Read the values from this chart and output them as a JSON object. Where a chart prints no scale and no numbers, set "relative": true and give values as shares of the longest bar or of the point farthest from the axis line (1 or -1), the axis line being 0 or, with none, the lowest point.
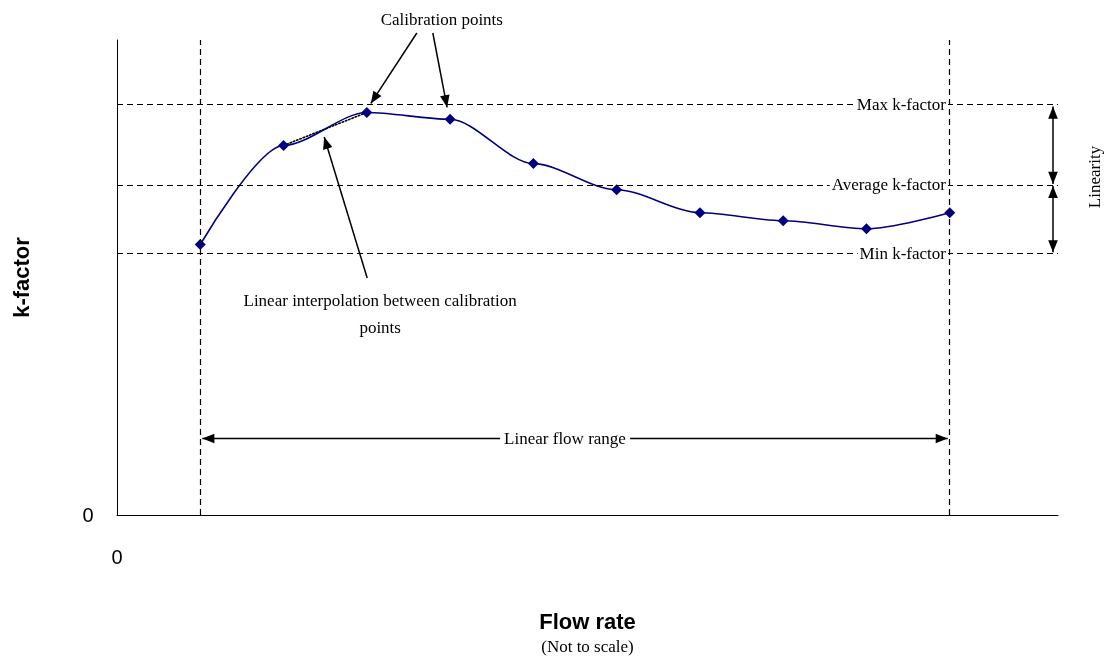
{
  "chart_data": {
    "type": "line",
    "relative": true,
    "xlabel": "Flow rate",
    "ylabel": "k-factor",
    "categories": [
      null,
      null,
      null,
      null,
      null,
      null,
      null,
      null,
      null,
      null
    ],
    "series": [
      {
        "color": "#000080",
        "values": [
          0.672,
          0.918,
          1,
          0.983,
          0.873,
          0.808,
          0.751,
          0.731,
          0.711,
          0.751
        ],
        "marker": "diamond",
        "line_style": "solid"
      },
      {
        "type": "line",
        "color": "#000000",
        "values": [
          null,
          0.918,
          1,
          null,
          null,
          null,
          null,
          null,
          null,
          null
        ],
        "marker": "none",
        "line_style": "dotted"
      }
    ],
    "ref_lines": [
      {
        "axis": "y",
        "value": 1.017,
        "label": "Max k-factor",
        "line_style": "dashed",
        "color": "#000000"
      },
      {
        "axis": "y",
        "value": 0.82,
        "label": "Average k-factor",
        "line_style": "dashed",
        "color": "#000000"
      },
      {
        "axis": "y",
        "value": 0.65,
        "label": "Min k-factor",
        "line_style": "dashed",
        "color": "#000000"
      }
    ],
    "annotations": [
      "0",
      "Calibration points",
      "Linear interpolation between calibration points",
      "Linear flow range",
      "Linearity",
      "(Not to scale)",
      "0"
    ]
  }
}
